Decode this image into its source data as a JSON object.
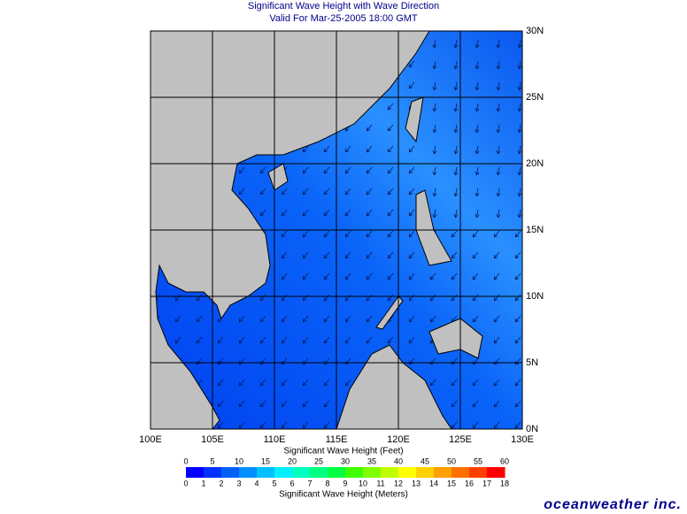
{
  "header": {
    "title": "Significant Wave Height with Wave Direction",
    "subtitle": "Valid For Mar-25-2005 18:00 GMT"
  },
  "map": {
    "lonlim": [
      100,
      130
    ],
    "latlim": [
      0,
      30
    ],
    "lon_ticks": [
      {
        "value": 100,
        "label": "100E"
      },
      {
        "value": 105,
        "label": "105E"
      },
      {
        "value": 110,
        "label": "110E"
      },
      {
        "value": 115,
        "label": "115E"
      },
      {
        "value": 120,
        "label": "120E"
      },
      {
        "value": 125,
        "label": "125E"
      },
      {
        "value": 130,
        "label": "130E"
      }
    ],
    "lat_ticks": [
      {
        "value": 0,
        "label": "0N"
      },
      {
        "value": 5,
        "label": "5N"
      },
      {
        "value": 10,
        "label": "10N"
      },
      {
        "value": 15,
        "label": "15N"
      },
      {
        "value": 20,
        "label": "20N"
      },
      {
        "value": 25,
        "label": "25N"
      },
      {
        "value": 30,
        "label": "30N"
      }
    ]
  },
  "colorbar": {
    "feet_title": "Significant Wave Height (Feet)",
    "meters_title": "Significant Wave Height (Meters)",
    "feet_lim": [
      0,
      60
    ],
    "feet_ticks": [
      0,
      5,
      10,
      15,
      20,
      25,
      30,
      35,
      40,
      45,
      50,
      55,
      60
    ],
    "meters_lim": [
      0,
      18
    ],
    "meters_ticks": [
      0,
      1,
      2,
      3,
      4,
      5,
      6,
      7,
      8,
      9,
      10,
      11,
      12,
      13,
      14,
      15,
      16,
      17,
      18
    ],
    "colors": [
      "#0000ff",
      "#0030ff",
      "#0060ff",
      "#0090ff",
      "#00c0ff",
      "#00f0ff",
      "#00ffc0",
      "#00ff80",
      "#00ff40",
      "#40ff00",
      "#80ff00",
      "#c0ff00",
      "#ffff00",
      "#ffd000",
      "#ffa000",
      "#ff7000",
      "#ff4000",
      "#ff0000"
    ]
  },
  "logo": "oceanweather inc."
}
